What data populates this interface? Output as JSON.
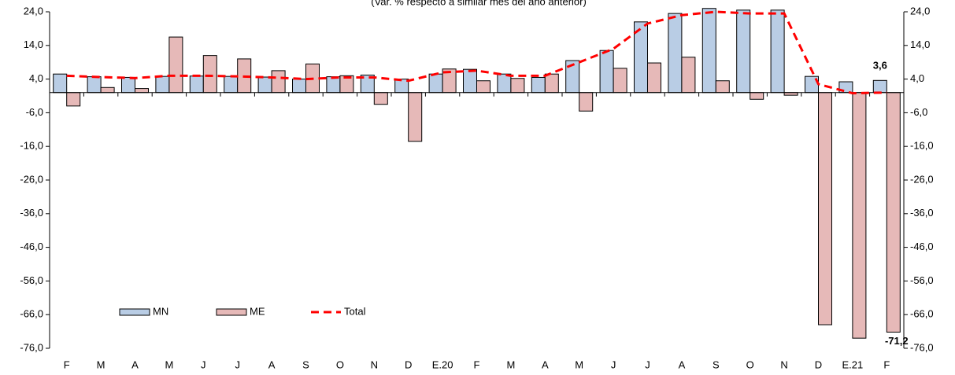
{
  "chart_data": {
    "type": "bar",
    "subtitle": "(Var. % respecto a similar mes del año anterior)",
    "categories": [
      "F",
      "M",
      "A",
      "M",
      "J",
      "J",
      "A",
      "S",
      "O",
      "N",
      "D",
      "E.20",
      "F",
      "M",
      "A",
      "M",
      "J",
      "J",
      "A",
      "S",
      "O",
      "N",
      "D",
      "E.21",
      "F"
    ],
    "series": [
      {
        "name": "MN",
        "color": "#b9cde5",
        "type": "bar",
        "values": [
          5.5,
          4.7,
          4.5,
          4.8,
          4.9,
          4.8,
          4.6,
          4.0,
          4.7,
          5.2,
          4.0,
          5.5,
          6.9,
          5.5,
          4.5,
          9.5,
          12.5,
          21,
          23.5,
          25,
          24.5,
          24.5,
          4.8,
          3.2,
          3.6
        ],
        "value_labels": [
          null,
          null,
          null,
          null,
          null,
          null,
          null,
          null,
          null,
          null,
          null,
          null,
          null,
          null,
          null,
          null,
          null,
          null,
          null,
          null,
          null,
          null,
          null,
          null,
          "3,6"
        ]
      },
      {
        "name": "ME",
        "color": "#e6b9b8",
        "type": "bar",
        "values": [
          -4,
          1.5,
          1.2,
          16.5,
          11,
          10,
          6.5,
          8.5,
          5,
          -3.5,
          -14.5,
          7,
          3.5,
          4.2,
          5.5,
          -5.5,
          7.2,
          8.8,
          10.5,
          3.5,
          -2,
          -0.8,
          -69,
          -73,
          -71.2
        ],
        "value_labels": [
          null,
          null,
          null,
          null,
          null,
          null,
          null,
          null,
          null,
          null,
          null,
          null,
          null,
          null,
          null,
          null,
          null,
          null,
          null,
          null,
          null,
          null,
          null,
          null,
          "-71,2"
        ]
      },
      {
        "name": "Total",
        "color": "#ff0000",
        "type": "line",
        "values": [
          5,
          4.6,
          4.3,
          5,
          5,
          4.8,
          4.5,
          4,
          4.5,
          4.5,
          3.5,
          6,
          6.5,
          5,
          5,
          9,
          13,
          20.5,
          23,
          24,
          23.5,
          23.5,
          2.5,
          -0.2,
          0
        ]
      }
    ],
    "ylim": [
      -76,
      24
    ],
    "yticks": [
      {
        "value": 24,
        "label": "24,0"
      },
      {
        "value": 14,
        "label": "14,0"
      },
      {
        "value": 4,
        "label": "4,0"
      },
      {
        "value": -6,
        "label": "-6,0"
      },
      {
        "value": -16,
        "label": "-16,0"
      },
      {
        "value": -26,
        "label": "-26,0"
      },
      {
        "value": -36,
        "label": "-36,0"
      },
      {
        "value": -46,
        "label": "-46,0"
      },
      {
        "value": -56,
        "label": "-56,0"
      },
      {
        "value": -66,
        "label": "-66,0"
      },
      {
        "value": -76,
        "label": "-76,0"
      }
    ],
    "legend": "lower-left"
  }
}
